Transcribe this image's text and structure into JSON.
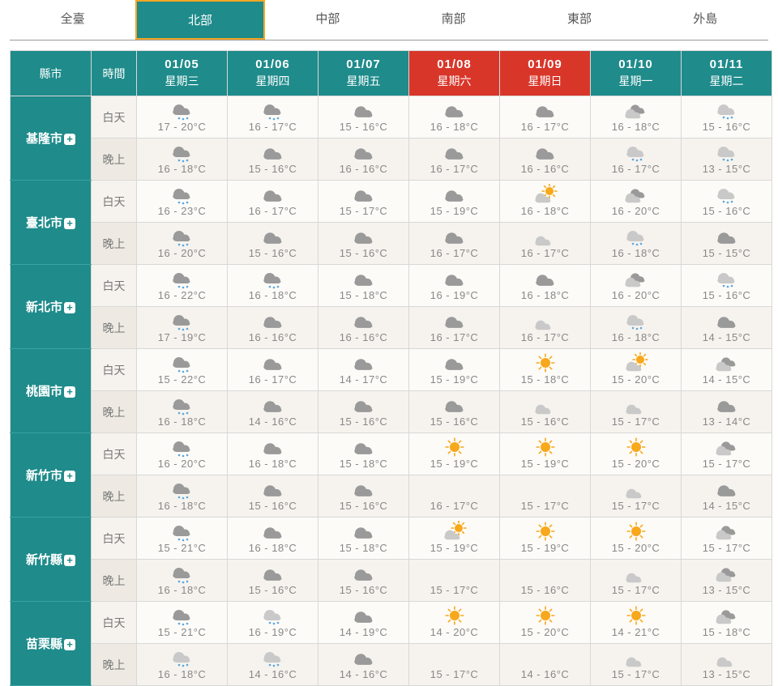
{
  "colors": {
    "teal": "#1f8b8b",
    "tab_border": "#f5a623",
    "weekend_bg": "#d9362a",
    "cell_bg_day": "#fdfbf7",
    "cell_bg_night": "#f6f3ee",
    "cloud": "#9a9a9a",
    "cloud_light": "#c9c9c9",
    "rain": "#5aa7e0",
    "sun": "#f7a81b",
    "moon": "#f7a81b"
  },
  "tabs": [
    {
      "label": "全臺",
      "active": false
    },
    {
      "label": "北部",
      "active": true
    },
    {
      "label": "中部",
      "active": false
    },
    {
      "label": "南部",
      "active": false
    },
    {
      "label": "東部",
      "active": false
    },
    {
      "label": "外島",
      "active": false
    }
  ],
  "header": {
    "city_label": "縣市",
    "time_label": "時間",
    "days": [
      {
        "date": "01/05",
        "dow": "星期三",
        "weekend": false
      },
      {
        "date": "01/06",
        "dow": "星期四",
        "weekend": false
      },
      {
        "date": "01/07",
        "dow": "星期五",
        "weekend": false
      },
      {
        "date": "01/08",
        "dow": "星期六",
        "weekend": true
      },
      {
        "date": "01/09",
        "dow": "星期日",
        "weekend": true
      },
      {
        "date": "01/10",
        "dow": "星期一",
        "weekend": false
      },
      {
        "date": "01/11",
        "dow": "星期二",
        "weekend": false
      }
    ]
  },
  "time_labels": {
    "day": "白天",
    "night": "晚上"
  },
  "icons_legend": {
    "rain": "cloud with rain drops",
    "cloud": "overcast cloud",
    "partcloud": "two clouds (partly cloudy)",
    "lightrain": "light cloud with drops",
    "sun": "sun",
    "suncloud": "sun behind cloud",
    "moon": "crescent moon",
    "mooncloud": "moon behind cloud"
  },
  "cities": [
    {
      "name": "基隆市",
      "day": [
        {
          "lo": 17,
          "hi": 20,
          "icon": "rain"
        },
        {
          "lo": 16,
          "hi": 17,
          "icon": "rain"
        },
        {
          "lo": 15,
          "hi": 16,
          "icon": "cloud"
        },
        {
          "lo": 16,
          "hi": 18,
          "icon": "cloud"
        },
        {
          "lo": 16,
          "hi": 17,
          "icon": "cloud"
        },
        {
          "lo": 16,
          "hi": 18,
          "icon": "partcloud"
        },
        {
          "lo": 15,
          "hi": 16,
          "icon": "lightrain"
        }
      ],
      "night": [
        {
          "lo": 16,
          "hi": 18,
          "icon": "rain"
        },
        {
          "lo": 15,
          "hi": 16,
          "icon": "cloud"
        },
        {
          "lo": 16,
          "hi": 16,
          "icon": "cloud"
        },
        {
          "lo": 16,
          "hi": 17,
          "icon": "cloud"
        },
        {
          "lo": 16,
          "hi": 16,
          "icon": "cloud"
        },
        {
          "lo": 16,
          "hi": 17,
          "icon": "lightrain"
        },
        {
          "lo": 13,
          "hi": 15,
          "icon": "lightrain"
        }
      ]
    },
    {
      "name": "臺北市",
      "day": [
        {
          "lo": 16,
          "hi": 23,
          "icon": "rain"
        },
        {
          "lo": 16,
          "hi": 17,
          "icon": "cloud"
        },
        {
          "lo": 15,
          "hi": 17,
          "icon": "cloud"
        },
        {
          "lo": 15,
          "hi": 19,
          "icon": "cloud"
        },
        {
          "lo": 16,
          "hi": 18,
          "icon": "suncloud"
        },
        {
          "lo": 16,
          "hi": 20,
          "icon": "partcloud"
        },
        {
          "lo": 15,
          "hi": 16,
          "icon": "lightrain"
        }
      ],
      "night": [
        {
          "lo": 16,
          "hi": 20,
          "icon": "rain"
        },
        {
          "lo": 15,
          "hi": 16,
          "icon": "cloud"
        },
        {
          "lo": 15,
          "hi": 16,
          "icon": "cloud"
        },
        {
          "lo": 16,
          "hi": 17,
          "icon": "cloud"
        },
        {
          "lo": 16,
          "hi": 17,
          "icon": "mooncloud"
        },
        {
          "lo": 16,
          "hi": 18,
          "icon": "lightrain"
        },
        {
          "lo": 15,
          "hi": 15,
          "icon": "cloud"
        }
      ]
    },
    {
      "name": "新北市",
      "day": [
        {
          "lo": 16,
          "hi": 22,
          "icon": "rain"
        },
        {
          "lo": 16,
          "hi": 18,
          "icon": "rain"
        },
        {
          "lo": 15,
          "hi": 18,
          "icon": "cloud"
        },
        {
          "lo": 16,
          "hi": 19,
          "icon": "cloud"
        },
        {
          "lo": 16,
          "hi": 18,
          "icon": "cloud"
        },
        {
          "lo": 16,
          "hi": 20,
          "icon": "partcloud"
        },
        {
          "lo": 15,
          "hi": 16,
          "icon": "lightrain"
        }
      ],
      "night": [
        {
          "lo": 17,
          "hi": 19,
          "icon": "rain"
        },
        {
          "lo": 16,
          "hi": 16,
          "icon": "cloud"
        },
        {
          "lo": 16,
          "hi": 16,
          "icon": "cloud"
        },
        {
          "lo": 16,
          "hi": 17,
          "icon": "cloud"
        },
        {
          "lo": 16,
          "hi": 17,
          "icon": "mooncloud"
        },
        {
          "lo": 16,
          "hi": 18,
          "icon": "lightrain"
        },
        {
          "lo": 14,
          "hi": 15,
          "icon": "cloud"
        }
      ]
    },
    {
      "name": "桃園市",
      "day": [
        {
          "lo": 15,
          "hi": 22,
          "icon": "rain"
        },
        {
          "lo": 16,
          "hi": 17,
          "icon": "cloud"
        },
        {
          "lo": 14,
          "hi": 17,
          "icon": "cloud"
        },
        {
          "lo": 15,
          "hi": 19,
          "icon": "cloud"
        },
        {
          "lo": 15,
          "hi": 18,
          "icon": "sun"
        },
        {
          "lo": 15,
          "hi": 20,
          "icon": "suncloud"
        },
        {
          "lo": 14,
          "hi": 15,
          "icon": "partcloud"
        }
      ],
      "night": [
        {
          "lo": 16,
          "hi": 18,
          "icon": "rain"
        },
        {
          "lo": 14,
          "hi": 16,
          "icon": "cloud"
        },
        {
          "lo": 15,
          "hi": 16,
          "icon": "cloud"
        },
        {
          "lo": 15,
          "hi": 16,
          "icon": "cloud"
        },
        {
          "lo": 15,
          "hi": 16,
          "icon": "mooncloud"
        },
        {
          "lo": 15,
          "hi": 17,
          "icon": "mooncloud"
        },
        {
          "lo": 13,
          "hi": 14,
          "icon": "cloud"
        }
      ]
    },
    {
      "name": "新竹市",
      "day": [
        {
          "lo": 16,
          "hi": 20,
          "icon": "rain"
        },
        {
          "lo": 16,
          "hi": 18,
          "icon": "cloud"
        },
        {
          "lo": 15,
          "hi": 18,
          "icon": "cloud"
        },
        {
          "lo": 15,
          "hi": 19,
          "icon": "sun"
        },
        {
          "lo": 15,
          "hi": 19,
          "icon": "sun"
        },
        {
          "lo": 15,
          "hi": 20,
          "icon": "sun"
        },
        {
          "lo": 15,
          "hi": 17,
          "icon": "partcloud"
        }
      ],
      "night": [
        {
          "lo": 16,
          "hi": 18,
          "icon": "rain"
        },
        {
          "lo": 15,
          "hi": 16,
          "icon": "cloud"
        },
        {
          "lo": 15,
          "hi": 16,
          "icon": "cloud"
        },
        {
          "lo": 16,
          "hi": 17,
          "icon": "moon"
        },
        {
          "lo": 15,
          "hi": 17,
          "icon": "moon"
        },
        {
          "lo": 15,
          "hi": 17,
          "icon": "mooncloud"
        },
        {
          "lo": 14,
          "hi": 15,
          "icon": "cloud"
        }
      ]
    },
    {
      "name": "新竹縣",
      "day": [
        {
          "lo": 15,
          "hi": 21,
          "icon": "rain"
        },
        {
          "lo": 16,
          "hi": 18,
          "icon": "cloud"
        },
        {
          "lo": 15,
          "hi": 18,
          "icon": "cloud"
        },
        {
          "lo": 15,
          "hi": 19,
          "icon": "suncloud"
        },
        {
          "lo": 15,
          "hi": 19,
          "icon": "sun"
        },
        {
          "lo": 15,
          "hi": 20,
          "icon": "sun"
        },
        {
          "lo": 15,
          "hi": 17,
          "icon": "partcloud"
        }
      ],
      "night": [
        {
          "lo": 16,
          "hi": 18,
          "icon": "rain"
        },
        {
          "lo": 15,
          "hi": 16,
          "icon": "cloud"
        },
        {
          "lo": 15,
          "hi": 16,
          "icon": "cloud"
        },
        {
          "lo": 15,
          "hi": 17,
          "icon": "moon"
        },
        {
          "lo": 15,
          "hi": 16,
          "icon": "moon"
        },
        {
          "lo": 15,
          "hi": 17,
          "icon": "mooncloud"
        },
        {
          "lo": 13,
          "hi": 15,
          "icon": "partcloud"
        }
      ]
    },
    {
      "name": "苗栗縣",
      "day": [
        {
          "lo": 15,
          "hi": 21,
          "icon": "rain"
        },
        {
          "lo": 16,
          "hi": 19,
          "icon": "lightrain"
        },
        {
          "lo": 14,
          "hi": 19,
          "icon": "cloud"
        },
        {
          "lo": 14,
          "hi": 20,
          "icon": "sun"
        },
        {
          "lo": 15,
          "hi": 20,
          "icon": "sun"
        },
        {
          "lo": 14,
          "hi": 21,
          "icon": "sun"
        },
        {
          "lo": 15,
          "hi": 18,
          "icon": "partcloud"
        }
      ],
      "night": [
        {
          "lo": 16,
          "hi": 18,
          "icon": "lightrain"
        },
        {
          "lo": 14,
          "hi": 16,
          "icon": "lightrain"
        },
        {
          "lo": 14,
          "hi": 16,
          "icon": "cloud"
        },
        {
          "lo": 15,
          "hi": 17,
          "icon": "moon"
        },
        {
          "lo": 14,
          "hi": 16,
          "icon": "moon"
        },
        {
          "lo": 15,
          "hi": 17,
          "icon": "mooncloud"
        },
        {
          "lo": 13,
          "hi": 15,
          "icon": "mooncloud"
        }
      ]
    }
  ]
}
